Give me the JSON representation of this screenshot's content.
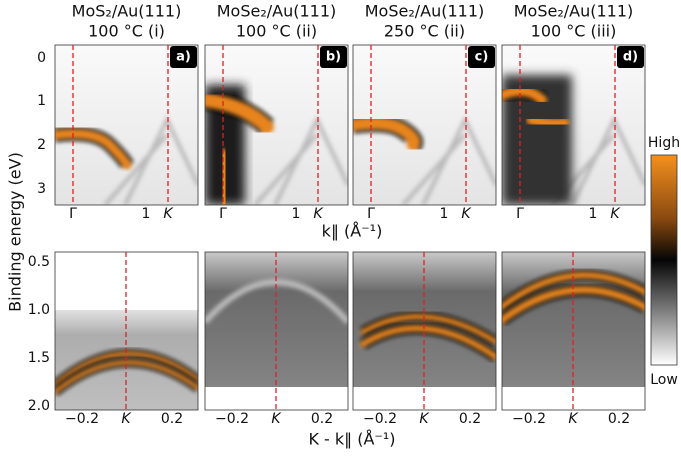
{
  "figure": {
    "panels": [
      {
        "title": "MoS₂/Au(111)",
        "subtitle": "100 °C (i)",
        "label": "a)"
      },
      {
        "title": "MoSe₂/Au(111)",
        "subtitle": "100 °C (ii)",
        "label": "b)"
      },
      {
        "title": "MoSe₂/Au(111)",
        "subtitle": "250 °C (ii)",
        "label": "c)"
      },
      {
        "title": "MoSe₂/Au(111)",
        "subtitle": "100 °C (iii)",
        "label": "d)"
      }
    ],
    "top_xticks": [
      "Γ",
      "1",
      "K"
    ],
    "top_yticks": [
      "0",
      "1",
      "2",
      "3"
    ],
    "bottom_xticks": [
      "−0.2",
      "K",
      "0.2"
    ],
    "bottom_yticks": [
      "0.5",
      "1.0",
      "1.5",
      "2.0"
    ],
    "y_label": "Binding energy (eV)",
    "top_x_label": "k‖ (Å⁻¹)",
    "bottom_x_label": "K - k‖ (Å⁻¹)",
    "colorbar": {
      "high": "High",
      "low": "Low"
    }
  }
}
